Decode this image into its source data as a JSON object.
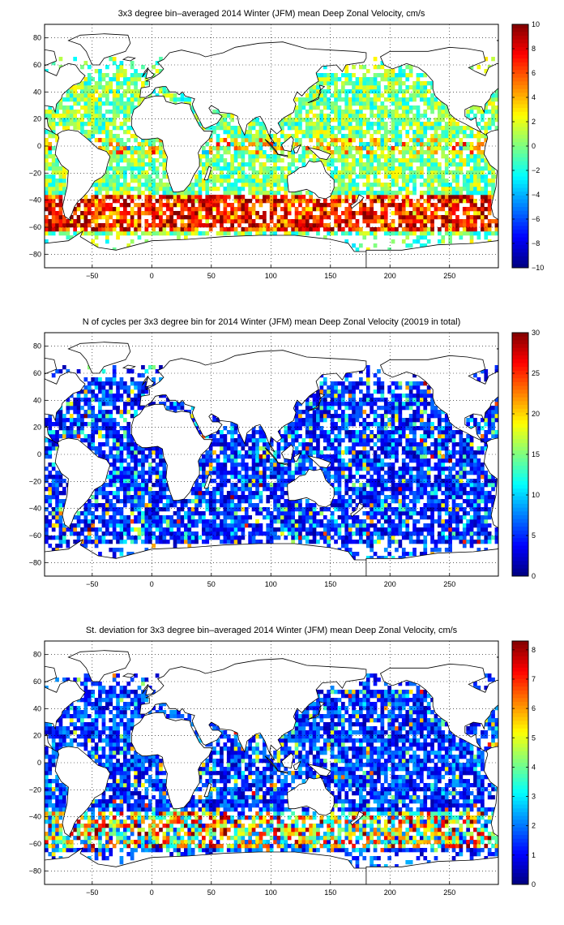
{
  "panels": [
    {
      "id": "mean",
      "title": "3x3 degree bin–averaged 2014 Winter (JFM) mean Deep Zonal Velocity, cm/s",
      "colorbar": {
        "min": -10,
        "max": 10,
        "ticks": [
          "10",
          "8",
          "6",
          "4",
          "2",
          "0",
          "−2",
          "−4",
          "−6",
          "−8",
          "−10"
        ]
      },
      "x_ticks": [
        "−50",
        "0",
        "50",
        "100",
        "150",
        "200",
        "250"
      ],
      "y_ticks": [
        "80",
        "60",
        "40",
        "20",
        "0",
        "−20",
        "−40",
        "−60",
        "−80"
      ],
      "type": "mean"
    },
    {
      "id": "count",
      "title": "N of cycles per 3x3 degree bin for 2014 Winter (JFM) mean Deep Zonal Velocity (20019 in total)",
      "colorbar": {
        "min": 0,
        "max": 30,
        "ticks": [
          "30",
          "25",
          "20",
          "15",
          "10",
          "5",
          "0"
        ]
      },
      "x_ticks": [
        "−50",
        "0",
        "50",
        "100",
        "150",
        "200",
        "250"
      ],
      "y_ticks": [
        "80",
        "60",
        "40",
        "20",
        "0",
        "−20",
        "−40",
        "−60",
        "−80"
      ],
      "type": "count"
    },
    {
      "id": "std",
      "title": "St. deviation for 3x3 degree bin–averaged 2014 Winter (JFM) mean Deep Zonal Velocity, cm/s",
      "colorbar": {
        "min": 0,
        "max": 8.3,
        "ticks": [
          "8",
          "7",
          "6",
          "5",
          "4",
          "3",
          "2",
          "1",
          "0"
        ]
      },
      "x_ticks": [
        "−50",
        "0",
        "50",
        "100",
        "150",
        "200",
        "250"
      ],
      "y_ticks": [
        "80",
        "60",
        "40",
        "20",
        "0",
        "−20",
        "−40",
        "−60",
        "−80"
      ],
      "type": "std"
    }
  ],
  "map": {
    "lon_range": [
      -90,
      291
    ],
    "lat_range": [
      -90,
      90
    ],
    "bin_deg": 3,
    "grid": true,
    "projection": "plate carree"
  },
  "colormap": "jet",
  "colors": {
    "land": "#ffffff",
    "coast": "#000000",
    "background": "#ffffff"
  }
}
